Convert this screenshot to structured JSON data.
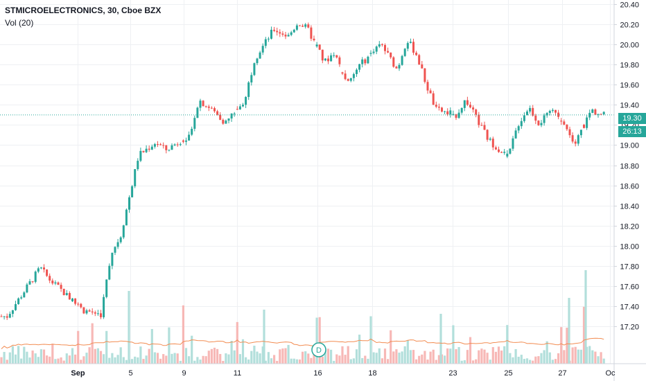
{
  "header": {
    "symbol": "STMICROELECTRONICS, 30, Cboe BZX",
    "volume_indicator": "Vol (20)"
  },
  "colors": {
    "up": "#26a69a",
    "down": "#ef5350",
    "volume_up": "#b2dfdb",
    "volume_down": "#f7b8b6",
    "volume_ma": "#f28b50",
    "last_price_line": "#26a69a",
    "grid": "#eef0f3"
  },
  "price_labels": {
    "last_price": "19.30",
    "countdown": "26:13"
  },
  "event_marker": "D",
  "chart_data": {
    "type": "candlestick",
    "title": "STMICROELECTRONICS, 30, Cboe BZX",
    "y_ticks": [
      "17.20",
      "17.40",
      "17.60",
      "17.80",
      "18.00",
      "18.20",
      "18.40",
      "18.60",
      "18.80",
      "19.00",
      "19.20",
      "19.40",
      "19.60",
      "19.80",
      "20.00",
      "20.20",
      "20.40"
    ],
    "x_ticks": [
      "Sep",
      "5",
      "9",
      "11",
      "16",
      "18",
      "23",
      "25",
      "27",
      "Oc"
    ],
    "ylim": [
      17.05,
      20.42
    ],
    "grid": true,
    "last_price": 19.3,
    "anchors": [
      {
        "date": "Aug 29",
        "price": 17.3
      },
      {
        "date": "Aug 30",
        "price": 17.78
      },
      {
        "date": "Aug 30",
        "price": 17.66
      },
      {
        "date": "Sep 3",
        "price": 17.36
      },
      {
        "date": "Sep 4",
        "price": 17.32
      },
      {
        "date": "Sep 4",
        "price": 17.92
      },
      {
        "date": "Sep 4",
        "price": 18.1
      },
      {
        "date": "Sep 5",
        "price": 18.9
      },
      {
        "date": "Sep 6",
        "price": 19.03
      },
      {
        "date": "Sep 6",
        "price": 18.95
      },
      {
        "date": "Sep 9",
        "price": 19.1
      },
      {
        "date": "Sep 9",
        "price": 19.45
      },
      {
        "date": "Sep 10",
        "price": 19.32
      },
      {
        "date": "Sep 10",
        "price": 19.22
      },
      {
        "date": "Sep 11",
        "price": 19.45
      },
      {
        "date": "Sep 11",
        "price": 19.85
      },
      {
        "date": "Sep 12",
        "price": 20.15
      },
      {
        "date": "Sep 13",
        "price": 20.08
      },
      {
        "date": "Sep 13",
        "price": 20.22
      },
      {
        "date": "Sep 13",
        "price": 20.15
      },
      {
        "date": "Sep 16",
        "price": 19.82
      },
      {
        "date": "Sep 16",
        "price": 19.92
      },
      {
        "date": "Sep 17",
        "price": 19.6
      },
      {
        "date": "Sep 17",
        "price": 19.78
      },
      {
        "date": "Sep 18",
        "price": 20.0
      },
      {
        "date": "Sep 19",
        "price": 19.75
      },
      {
        "date": "Sep 19",
        "price": 20.05
      },
      {
        "date": "Sep 20",
        "price": 19.9
      },
      {
        "date": "Sep 20",
        "price": 19.6
      },
      {
        "date": "Sep 20",
        "price": 19.35
      },
      {
        "date": "Sep 23",
        "price": 19.3
      },
      {
        "date": "Sep 23",
        "price": 19.45
      },
      {
        "date": "Sep 24",
        "price": 19.05
      },
      {
        "date": "Sep 25",
        "price": 18.88
      },
      {
        "date": "Sep 25",
        "price": 19.2
      },
      {
        "date": "Sep 26",
        "price": 19.38
      },
      {
        "date": "Sep 26",
        "price": 19.22
      },
      {
        "date": "Sep 27",
        "price": 19.35
      },
      {
        "date": "Sep 27",
        "price": 19.2
      },
      {
        "date": "Sep 27",
        "price": 19.0
      },
      {
        "date": "Sep 30",
        "price": 19.35
      },
      {
        "date": "Sep 30",
        "price": 19.3
      }
    ]
  }
}
